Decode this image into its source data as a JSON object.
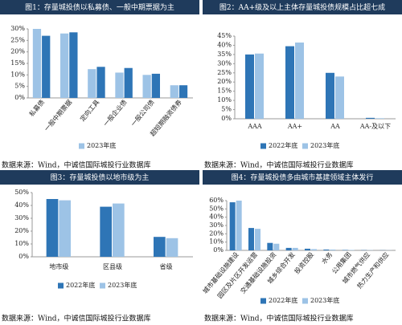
{
  "chart_data": [
    {
      "type": "bar",
      "title": "图1：存量城投债以私募债、一般中期票据为主",
      "categories": [
        "私募债",
        "一般中期票据",
        "定向工具",
        "一般企业债",
        "一般公司债",
        "超短期融资债券"
      ],
      "series": [
        {
          "name": "2023年底",
          "color": "#9dc3e6",
          "values": [
            30,
            28,
            12.5,
            11,
            10,
            5.5
          ]
        },
        {
          "color": "#2e75b6",
          "values": [
            27,
            28.5,
            13.5,
            13,
            10.5,
            5.5
          ]
        }
      ],
      "ylim": [
        0,
        30
      ],
      "yticks": [
        {
          "value": 0,
          "label": "0%"
        },
        {
          "value": 5,
          "label": "5%"
        },
        {
          "value": 10,
          "label": "10%"
        },
        {
          "value": 15,
          "label": "15%"
        },
        {
          "value": 20,
          "label": "20%"
        },
        {
          "value": 25,
          "label": "25%"
        },
        {
          "value": 30,
          "label": "30%"
        }
      ],
      "grid": false,
      "legend": "bottom",
      "source": "数据来源：Wind，中诚信国际城投行业数据库"
    },
    {
      "type": "bar",
      "title": "图2：AA+级及以上主体存量城投债规模占比超七成",
      "categories": [
        "AAA",
        "AA+",
        "AA",
        "AA-及以下"
      ],
      "series": [
        {
          "name": "2022年底",
          "color": "#2e75b6",
          "values": [
            35,
            39.5,
            25,
            0.5
          ]
        },
        {
          "name": "2023年底",
          "color": "#9dc3e6",
          "values": [
            35.5,
            41.5,
            23,
            0.3
          ]
        }
      ],
      "ylim": [
        0,
        45
      ],
      "yticks": [
        {
          "value": 0,
          "label": "0%"
        },
        {
          "value": 5,
          "label": "5%"
        },
        {
          "value": 10,
          "label": "10%"
        },
        {
          "value": 15,
          "label": "15%"
        },
        {
          "value": 20,
          "label": "20%"
        },
        {
          "value": 25,
          "label": "25%"
        },
        {
          "value": 30,
          "label": "30%"
        },
        {
          "value": 35,
          "label": "35%"
        },
        {
          "value": 40,
          "label": "40%"
        },
        {
          "value": 45,
          "label": "45%"
        }
      ],
      "grid": false,
      "legend": "bottom",
      "source": "数据来源：Wind，中诚信国际城投行业数据库"
    },
    {
      "type": "bar",
      "title": "图3：存量城投债以地市级为主",
      "categories": [
        "地市级",
        "区县级",
        "省级"
      ],
      "series": [
        {
          "name": "2022年底",
          "color": "#2e75b6",
          "values": [
            45,
            39,
            15.5
          ]
        },
        {
          "name": "2023年底",
          "color": "#9dc3e6",
          "values": [
            44,
            41.5,
            14.5
          ]
        }
      ],
      "ylim": [
        0,
        50
      ],
      "yticks": [
        {
          "value": 0,
          "label": "0%"
        },
        {
          "value": 10,
          "label": "10%"
        },
        {
          "value": 20,
          "label": "20%"
        },
        {
          "value": 30,
          "label": "30%"
        },
        {
          "value": 40,
          "label": "40%"
        },
        {
          "value": 50,
          "label": "50%"
        }
      ],
      "grid": false,
      "legend": "bottom",
      "source": "数据来源：Wind，中诚信国际城投行业数据库"
    },
    {
      "type": "bar",
      "title": "图4：存量城投债多由城市基建领域主体发行",
      "categories": [
        "城市基础设施建设",
        "园区及片区开发运营",
        "交通基础设施投资",
        "城乡综合开发",
        "投资控股",
        "水务",
        "公用集团",
        "城市燃气供应",
        "热力生产和供应"
      ],
      "series": [
        {
          "name": "2022年底",
          "color": "#2e75b6",
          "values": [
            58,
            27,
            9,
            3,
            2,
            1,
            0.5,
            0.3,
            0.2
          ]
        },
        {
          "name": "2023年底",
          "color": "#9dc3e6",
          "values": [
            60,
            26,
            8,
            3,
            1.5,
            1,
            0.5,
            0.3,
            0.2
          ]
        }
      ],
      "ylim": [
        0,
        60
      ],
      "yticks": [
        {
          "value": 0,
          "label": "0%"
        },
        {
          "value": 10,
          "label": "10%"
        },
        {
          "value": 20,
          "label": "20%"
        },
        {
          "value": 30,
          "label": "30%"
        },
        {
          "value": 40,
          "label": "40%"
        },
        {
          "value": 50,
          "label": "50%"
        },
        {
          "value": 60,
          "label": "60%"
        }
      ],
      "grid": false,
      "legend": "bottom",
      "source": "数据来源：Wind，中诚信国际城投行业数据库"
    }
  ]
}
